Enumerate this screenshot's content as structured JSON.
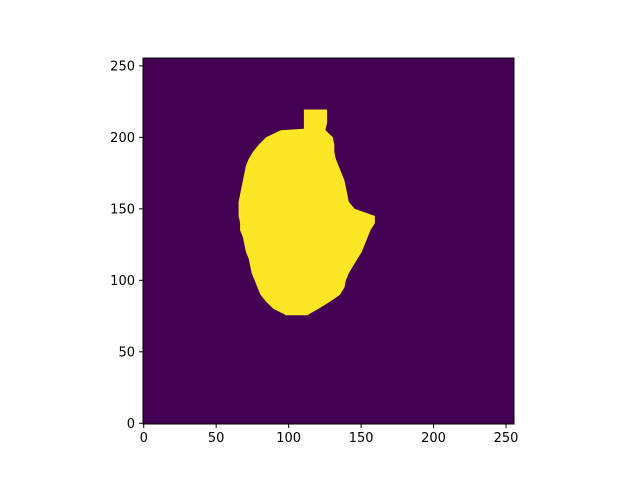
{
  "chart_data": {
    "type": "heatmap",
    "title": "",
    "xlabel": "",
    "ylabel": "",
    "shape": [
      256,
      256
    ],
    "xlim": [
      -0.5,
      255.5
    ],
    "ylim": [
      255.5,
      -0.5
    ],
    "x_ticks": [
      0,
      50,
      100,
      150,
      200,
      250
    ],
    "y_ticks": [
      0,
      50,
      100,
      150,
      200,
      250
    ],
    "grid": false,
    "colormap": "viridis",
    "value_range": [
      0,
      1
    ],
    "background_value": 0,
    "colors": {
      "background": "#440154",
      "mask": "#fde725"
    },
    "mask_rows": [
      {
        "y": 76,
        "x_start": 98,
        "x_end": 113
      },
      {
        "y": 80,
        "x_start": 90,
        "x_end": 120
      },
      {
        "y": 85,
        "x_start": 85,
        "x_end": 128
      },
      {
        "y": 90,
        "x_start": 81,
        "x_end": 135
      },
      {
        "y": 95,
        "x_start": 79,
        "x_end": 138
      },
      {
        "y": 100,
        "x_start": 77,
        "x_end": 139
      },
      {
        "y": 105,
        "x_start": 75,
        "x_end": 141
      },
      {
        "y": 110,
        "x_start": 74,
        "x_end": 144
      },
      {
        "y": 115,
        "x_start": 73,
        "x_end": 147
      },
      {
        "y": 120,
        "x_start": 71,
        "x_end": 150
      },
      {
        "y": 125,
        "x_start": 70,
        "x_end": 152
      },
      {
        "y": 130,
        "x_start": 69,
        "x_end": 154
      },
      {
        "y": 135,
        "x_start": 67,
        "x_end": 156
      },
      {
        "y": 140,
        "x_start": 67,
        "x_end": 159
      },
      {
        "y": 145,
        "x_start": 66,
        "x_end": 159
      },
      {
        "y": 150,
        "x_start": 66,
        "x_end": 145
      },
      {
        "y": 155,
        "x_start": 66,
        "x_end": 141
      },
      {
        "y": 160,
        "x_start": 67,
        "x_end": 140
      },
      {
        "y": 165,
        "x_start": 68,
        "x_end": 139
      },
      {
        "y": 170,
        "x_start": 69,
        "x_end": 138
      },
      {
        "y": 175,
        "x_start": 70,
        "x_end": 136
      },
      {
        "y": 180,
        "x_start": 71,
        "x_end": 134
      },
      {
        "y": 185,
        "x_start": 73,
        "x_end": 132
      },
      {
        "y": 190,
        "x_start": 76,
        "x_end": 131
      },
      {
        "y": 195,
        "x_start": 80,
        "x_end": 131
      },
      {
        "y": 200,
        "x_start": 85,
        "x_end": 130
      },
      {
        "y": 205,
        "x_start": 95,
        "x_end": 125
      },
      {
        "y": 206,
        "x_start": 111,
        "x_end": 125
      },
      {
        "y": 210,
        "x_start": 111,
        "x_end": 126
      },
      {
        "y": 215,
        "x_start": 111,
        "x_end": 126
      },
      {
        "y": 219,
        "x_start": 111,
        "x_end": 126
      }
    ]
  }
}
